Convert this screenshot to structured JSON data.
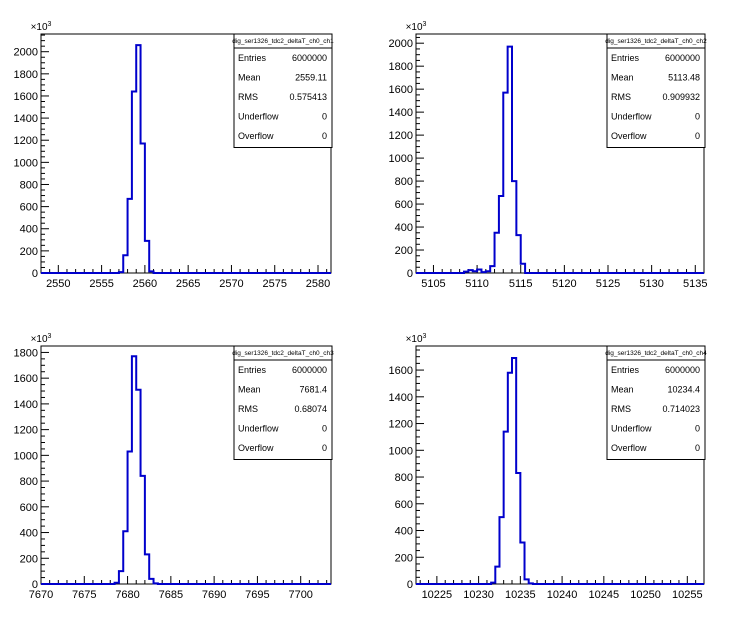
{
  "chart_data": [
    {
      "type": "histogram",
      "title": "dig_ser1326_tdc2_deltaT_ch0_ch1",
      "stats": [
        {
          "label": "Entries",
          "value": "6000000"
        },
        {
          "label": "Mean",
          "value": "2559.11"
        },
        {
          "label": "RMS",
          "value": "0.575413"
        },
        {
          "label": "Underflow",
          "value": "0"
        },
        {
          "label": "Overflow",
          "value": "0"
        }
      ],
      "xlim": [
        2548,
        2581.5
      ],
      "ylim": [
        0,
        2160
      ],
      "xticks": [
        2550,
        2555,
        2560,
        2565,
        2570,
        2575,
        2580
      ],
      "yticks": [
        0,
        200,
        400,
        600,
        800,
        1000,
        1200,
        1400,
        1600,
        1800,
        2000
      ],
      "yexponent": "10^3",
      "bin_width": 0.5,
      "x": [
        2557.0,
        2557.5,
        2558.0,
        2558.5,
        2559.0,
        2559.5,
        2560.0,
        2560.5
      ],
      "values": [
        8,
        160,
        670,
        1640,
        2060,
        1170,
        290,
        15
      ]
    },
    {
      "type": "histogram",
      "title": "dig_ser1326_tdc2_deltaT_ch0_ch2",
      "stats": [
        {
          "label": "Entries",
          "value": "6000000"
        },
        {
          "label": "Mean",
          "value": "5113.48"
        },
        {
          "label": "RMS",
          "value": "0.909932"
        },
        {
          "label": "Underflow",
          "value": "0"
        },
        {
          "label": "Overflow",
          "value": "0"
        }
      ],
      "xlim": [
        5103,
        5136
      ],
      "ylim": [
        0,
        2080
      ],
      "xticks": [
        5105,
        5110,
        5115,
        5120,
        5125,
        5130,
        5135
      ],
      "yticks": [
        0,
        200,
        400,
        600,
        800,
        1000,
        1200,
        1400,
        1600,
        1800,
        2000
      ],
      "yexponent": "10^3",
      "bin_width": 0.5,
      "x": [
        5108.5,
        5109.0,
        5109.5,
        5110.0,
        5110.5,
        5111.0,
        5111.5,
        5112.0,
        5112.5,
        5113.0,
        5113.5,
        5114.0,
        5114.5,
        5115.0
      ],
      "values": [
        12,
        25,
        15,
        30,
        8,
        15,
        60,
        350,
        670,
        1570,
        1970,
        800,
        330,
        80
      ]
    },
    {
      "type": "histogram",
      "title": "dig_ser1326_tdc2_deltaT_ch0_ch3",
      "stats": [
        {
          "label": "Entries",
          "value": "6000000"
        },
        {
          "label": "Mean",
          "value": "7681.4"
        },
        {
          "label": "RMS",
          "value": "0.68074"
        },
        {
          "label": "Underflow",
          "value": "0"
        },
        {
          "label": "Overflow",
          "value": "0"
        }
      ],
      "xlim": [
        7670,
        7703.5
      ],
      "ylim": [
        0,
        1850
      ],
      "xticks": [
        7670,
        7675,
        7680,
        7685,
        7690,
        7695,
        7700
      ],
      "yticks": [
        0,
        200,
        400,
        600,
        800,
        1000,
        1200,
        1400,
        1600,
        1800
      ],
      "yexponent": "10^3",
      "bin_width": 0.5,
      "x": [
        7678.5,
        7679.0,
        7679.5,
        7680.0,
        7680.5,
        7681.0,
        7681.5,
        7682.0,
        7682.5,
        7683.0
      ],
      "values": [
        10,
        100,
        410,
        1030,
        1770,
        1510,
        840,
        230,
        40,
        5
      ]
    },
    {
      "type": "histogram",
      "title": "dig_ser1326_tdc2_deltaT_ch0_ch4",
      "stats": [
        {
          "label": "Entries",
          "value": "6000000"
        },
        {
          "label": "Mean",
          "value": "10234.4"
        },
        {
          "label": "RMS",
          "value": "0.714023"
        },
        {
          "label": "Underflow",
          "value": "0"
        },
        {
          "label": "Overflow",
          "value": "0"
        }
      ],
      "xlim": [
        10222.5,
        10257
      ],
      "ylim": [
        0,
        1780
      ],
      "xticks": [
        10225,
        10230,
        10235,
        10240,
        10245,
        10250,
        10255
      ],
      "yticks": [
        0,
        200,
        400,
        600,
        800,
        1000,
        1200,
        1400,
        1600
      ],
      "yexponent": "10^3",
      "bin_width": 0.5,
      "x": [
        10231.5,
        10232.0,
        10232.5,
        10233.0,
        10233.5,
        10234.0,
        10234.5,
        10235.0,
        10235.5,
        10236.0
      ],
      "values": [
        10,
        130,
        500,
        1140,
        1580,
        1690,
        830,
        310,
        35,
        5
      ]
    }
  ],
  "colors": {
    "histogram_line": "#0000cc",
    "frame": "#000000",
    "background": "#ffffff"
  }
}
